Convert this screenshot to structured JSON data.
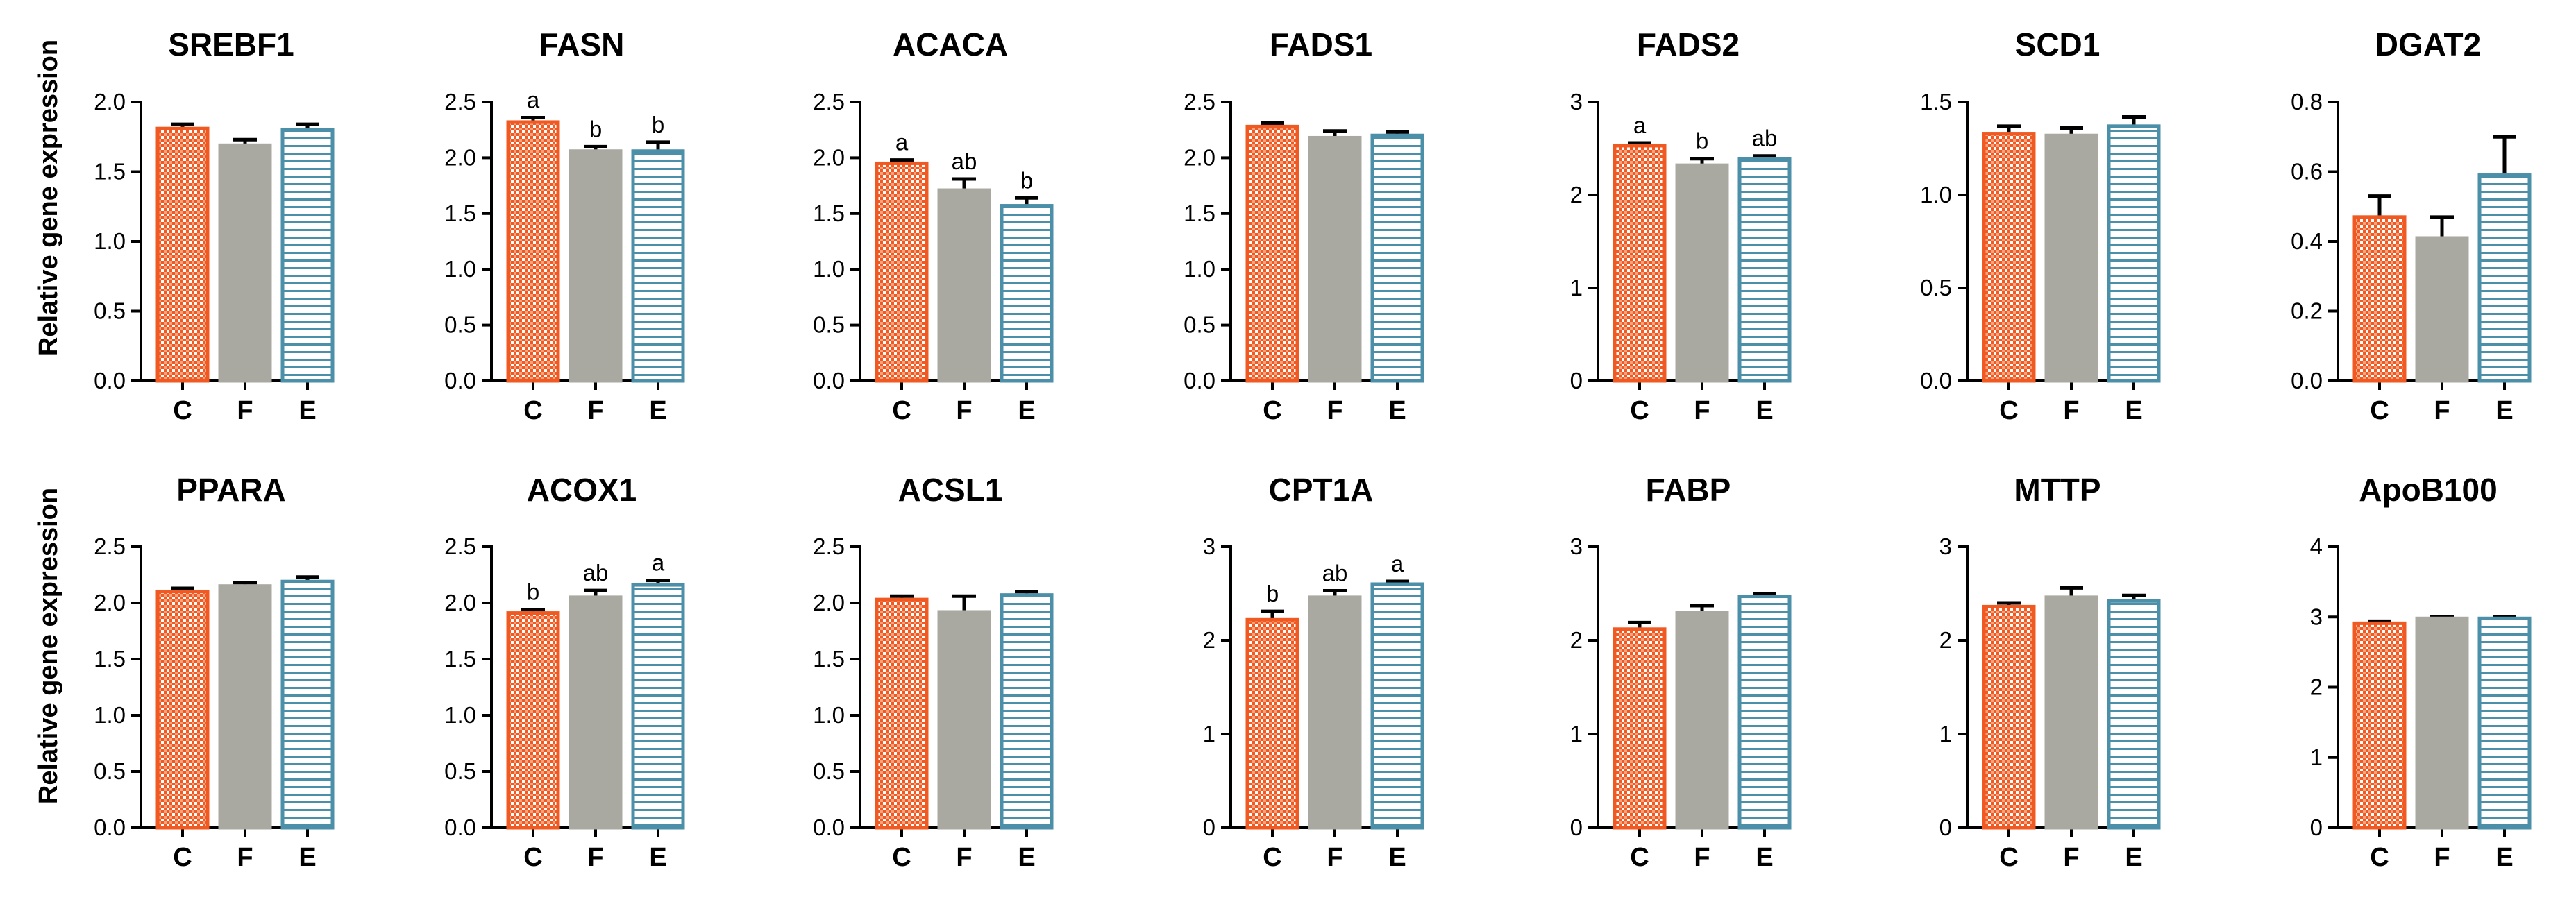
{
  "ylabel": "Relative gene expression",
  "colors": {
    "C": "#f05a22",
    "F": "#a9a9a1",
    "E": "#4b8fa8",
    "axis": "#000000"
  },
  "chart_data": [
    {
      "type": "bar",
      "title": "SREBF1",
      "categories": [
        "C",
        "F",
        "E"
      ],
      "values": [
        1.81,
        1.69,
        1.8
      ],
      "errors": [
        0.03,
        0.04,
        0.04
      ],
      "labels": [
        "",
        "",
        ""
      ],
      "ylim": [
        0,
        2.0
      ],
      "yticks": [
        0,
        0.5,
        1.0,
        1.5,
        2.0
      ],
      "ytick_labels": [
        "0.0",
        "0.5",
        "1.0",
        "1.5",
        "2.0"
      ]
    },
    {
      "type": "bar",
      "title": "FASN",
      "categories": [
        "C",
        "F",
        "E"
      ],
      "values": [
        2.32,
        2.06,
        2.06
      ],
      "errors": [
        0.04,
        0.04,
        0.08
      ],
      "labels": [
        "a",
        "b",
        "b"
      ],
      "ylim": [
        0,
        2.5
      ],
      "yticks": [
        0,
        0.5,
        1.0,
        1.5,
        2.0,
        2.5
      ],
      "ytick_labels": [
        "0.0",
        "0.5",
        "1.0",
        "1.5",
        "2.0",
        "2.5"
      ]
    },
    {
      "type": "bar",
      "title": "ACACA",
      "categories": [
        "C",
        "F",
        "E"
      ],
      "values": [
        1.95,
        1.71,
        1.57
      ],
      "errors": [
        0.03,
        0.1,
        0.07
      ],
      "labels": [
        "a",
        "ab",
        "b"
      ],
      "ylim": [
        0,
        2.5
      ],
      "yticks": [
        0,
        0.5,
        1.0,
        1.5,
        2.0,
        2.5
      ],
      "ytick_labels": [
        "0.0",
        "0.5",
        "1.0",
        "1.5",
        "2.0",
        "2.5"
      ]
    },
    {
      "type": "bar",
      "title": "FADS1",
      "categories": [
        "C",
        "F",
        "E"
      ],
      "values": [
        2.28,
        2.18,
        2.2
      ],
      "errors": [
        0.03,
        0.06,
        0.03
      ],
      "labels": [
        "",
        "",
        ""
      ],
      "ylim": [
        0,
        2.5
      ],
      "yticks": [
        0,
        0.5,
        1.0,
        1.5,
        2.0,
        2.5
      ],
      "ytick_labels": [
        "0.0",
        "0.5",
        "1.0",
        "1.5",
        "2.0",
        "2.5"
      ]
    },
    {
      "type": "bar",
      "title": "FADS2",
      "categories": [
        "C",
        "F",
        "E"
      ],
      "values": [
        2.53,
        2.32,
        2.39
      ],
      "errors": [
        0.03,
        0.07,
        0.03
      ],
      "labels": [
        "a",
        "b",
        "ab"
      ],
      "ylim": [
        0,
        3
      ],
      "yticks": [
        0,
        1,
        2,
        3
      ],
      "ytick_labels": [
        "0",
        "1",
        "2",
        "3"
      ]
    },
    {
      "type": "bar",
      "title": "SCD1",
      "categories": [
        "C",
        "F",
        "E"
      ],
      "values": [
        1.33,
        1.32,
        1.37
      ],
      "errors": [
        0.04,
        0.04,
        0.05
      ],
      "labels": [
        "",
        "",
        ""
      ],
      "ylim": [
        0,
        1.5
      ],
      "yticks": [
        0,
        0.5,
        1.0,
        1.5
      ],
      "ytick_labels": [
        "0.0",
        "0.5",
        "1.0",
        "1.5"
      ]
    },
    {
      "type": "bar",
      "title": "DGAT2",
      "categories": [
        "C",
        "F",
        "E"
      ],
      "values": [
        0.47,
        0.41,
        0.59
      ],
      "errors": [
        0.06,
        0.06,
        0.11
      ],
      "labels": [
        "",
        "",
        ""
      ],
      "ylim": [
        0,
        0.8
      ],
      "yticks": [
        0,
        0.2,
        0.4,
        0.6,
        0.8
      ],
      "ytick_labels": [
        "0.0",
        "0.2",
        "0.4",
        "0.6",
        "0.8"
      ]
    },
    {
      "type": "bar",
      "title": "PPARA",
      "categories": [
        "C",
        "F",
        "E"
      ],
      "values": [
        2.1,
        2.15,
        2.19
      ],
      "errors": [
        0.03,
        0.03,
        0.04
      ],
      "labels": [
        "",
        "",
        ""
      ],
      "ylim": [
        0,
        2.5
      ],
      "yticks": [
        0,
        0.5,
        1.0,
        1.5,
        2.0,
        2.5
      ],
      "ytick_labels": [
        "0.0",
        "0.5",
        "1.0",
        "1.5",
        "2.0",
        "2.5"
      ]
    },
    {
      "type": "bar",
      "title": "ACOX1",
      "categories": [
        "C",
        "F",
        "E"
      ],
      "values": [
        1.91,
        2.05,
        2.16
      ],
      "errors": [
        0.03,
        0.06,
        0.04
      ],
      "labels": [
        "b",
        "ab",
        "a"
      ],
      "ylim": [
        0,
        2.5
      ],
      "yticks": [
        0,
        0.5,
        1.0,
        1.5,
        2.0,
        2.5
      ],
      "ytick_labels": [
        "0.0",
        "0.5",
        "1.0",
        "1.5",
        "2.0",
        "2.5"
      ]
    },
    {
      "type": "bar",
      "title": "ACSL1",
      "categories": [
        "C",
        "F",
        "E"
      ],
      "values": [
        2.03,
        1.92,
        2.07
      ],
      "errors": [
        0.03,
        0.14,
        0.03
      ],
      "labels": [
        "",
        "",
        ""
      ],
      "ylim": [
        0,
        2.5
      ],
      "yticks": [
        0,
        0.5,
        1.0,
        1.5,
        2.0,
        2.5
      ],
      "ytick_labels": [
        "0.0",
        "0.5",
        "1.0",
        "1.5",
        "2.0",
        "2.5"
      ]
    },
    {
      "type": "bar",
      "title": "CPT1A",
      "categories": [
        "C",
        "F",
        "E"
      ],
      "values": [
        2.22,
        2.46,
        2.6
      ],
      "errors": [
        0.09,
        0.07,
        0.03
      ],
      "labels": [
        "b",
        "ab",
        "a"
      ],
      "ylim": [
        0,
        3
      ],
      "yticks": [
        0,
        1,
        2,
        3
      ],
      "ytick_labels": [
        "0",
        "1",
        "2",
        "3"
      ]
    },
    {
      "type": "bar",
      "title": "FABP",
      "categories": [
        "C",
        "F",
        "E"
      ],
      "values": [
        2.12,
        2.3,
        2.47
      ],
      "errors": [
        0.07,
        0.07,
        0.03
      ],
      "labels": [
        "",
        "",
        ""
      ],
      "ylim": [
        0,
        3
      ],
      "yticks": [
        0,
        1,
        2,
        3
      ],
      "ytick_labels": [
        "0",
        "1",
        "2",
        "3"
      ]
    },
    {
      "type": "bar",
      "title": "MTTP",
      "categories": [
        "C",
        "F",
        "E"
      ],
      "values": [
        2.36,
        2.46,
        2.42
      ],
      "errors": [
        0.04,
        0.1,
        0.06
      ],
      "labels": [
        "",
        "",
        ""
      ],
      "ylim": [
        0,
        3
      ],
      "yticks": [
        0,
        1,
        2,
        3
      ],
      "ytick_labels": [
        "0",
        "1",
        "2",
        "3"
      ]
    },
    {
      "type": "bar",
      "title": "ApoB100",
      "categories": [
        "C",
        "F",
        "E"
      ],
      "values": [
        2.91,
        2.98,
        2.98
      ],
      "errors": [
        0.03,
        0.02,
        0.02
      ],
      "labels": [
        "",
        "",
        ""
      ],
      "ylim": [
        0,
        4
      ],
      "yticks": [
        0,
        1,
        2,
        3,
        4
      ],
      "ytick_labels": [
        "0",
        "1",
        "2",
        "3",
        "4"
      ]
    }
  ]
}
